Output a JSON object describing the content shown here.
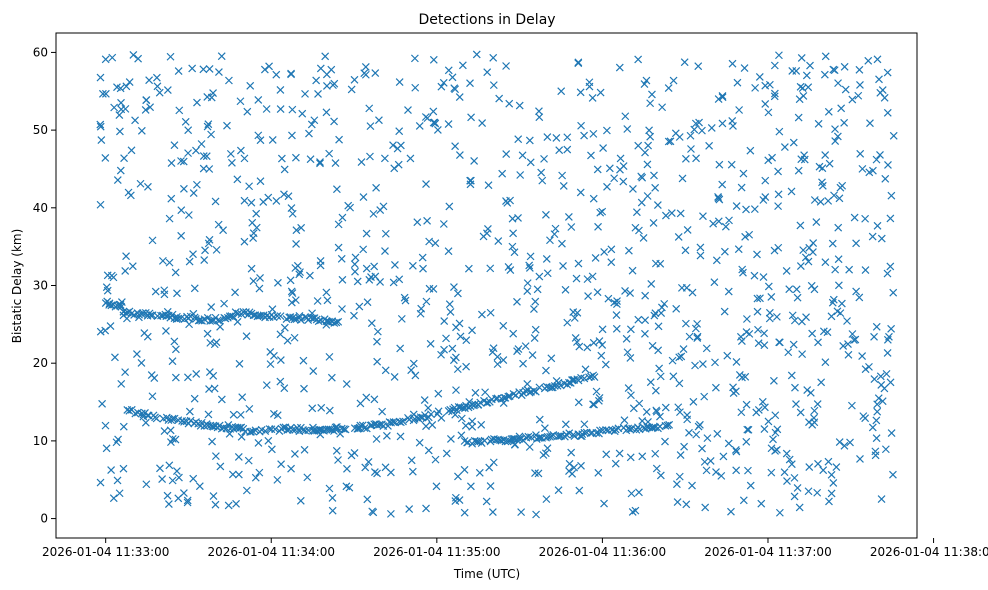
{
  "chart_data": {
    "type": "scatter",
    "title": "Detections in Delay",
    "xlabel": "Time (UTC)",
    "ylabel": "Bistatic Delay (km)",
    "marker": "x",
    "color": "#1f77b4",
    "grid": false,
    "legend": false,
    "xlim": [
      "2026-01-04 11:32:42",
      "2026-01-04 11:37:54"
    ],
    "ylim": [
      -2.5,
      62.5
    ],
    "x_ticks": [
      "2026-01-04 11:33:00",
      "2026-01-04 11:34:00",
      "2026-01-04 11:35:00",
      "2026-01-04 11:36:00",
      "2026-01-04 11:37:00",
      "2026-01-04 11:38:00"
    ],
    "y_ticks": [
      0,
      10,
      20,
      30,
      40,
      50,
      60
    ],
    "tracks": [
      {
        "description": "upper target track",
        "points": [
          [
            "2026-01-04 11:33:00",
            27.8
          ],
          [
            "2026-01-04 11:33:05",
            27.2
          ],
          [
            "2026-01-04 11:33:08",
            26.5
          ],
          [
            "2026-01-04 11:33:20",
            26.2
          ],
          [
            "2026-01-04 11:33:30",
            25.8
          ],
          [
            "2026-01-04 11:33:40",
            25.6
          ],
          [
            "2026-01-04 11:33:50",
            26.5
          ],
          [
            "2026-01-04 11:34:00",
            26.0
          ],
          [
            "2026-01-04 11:34:10",
            25.8
          ],
          [
            "2026-01-04 11:34:20",
            25.5
          ],
          [
            "2026-01-04 11:34:25",
            25.2
          ]
        ]
      },
      {
        "description": "lower target track",
        "points": [
          [
            "2026-01-04 11:33:08",
            14.0
          ],
          [
            "2026-01-04 11:33:20",
            13.0
          ],
          [
            "2026-01-04 11:33:30",
            12.4
          ],
          [
            "2026-01-04 11:33:40",
            11.8
          ],
          [
            "2026-01-04 11:33:55",
            11.3
          ],
          [
            "2026-01-04 11:34:05",
            11.5
          ],
          [
            "2026-01-04 11:34:20",
            11.4
          ],
          [
            "2026-01-04 11:34:40",
            12.0
          ],
          [
            "2026-01-04 11:34:55",
            13.0
          ],
          [
            "2026-01-04 11:35:05",
            14.0
          ],
          [
            "2026-01-04 11:35:20",
            15.2
          ],
          [
            "2026-01-04 11:35:35",
            16.5
          ],
          [
            "2026-01-04 11:35:50",
            17.7
          ],
          [
            "2026-01-04 11:35:58",
            18.4
          ]
        ]
      },
      {
        "description": "secondary track",
        "points": [
          [
            "2026-01-04 11:35:10",
            9.9
          ],
          [
            "2026-01-04 11:35:20",
            10.0
          ],
          [
            "2026-01-04 11:35:50",
            10.8
          ],
          [
            "2026-01-04 11:36:00",
            11.2
          ],
          [
            "2026-01-04 11:36:10",
            11.6
          ],
          [
            "2026-01-04 11:36:25",
            12.0
          ]
        ]
      }
    ],
    "clutter": {
      "count": 1200,
      "x_range": [
        "2026-01-04 11:32:58",
        "2026-01-04 11:37:46"
      ],
      "y_range": [
        0.5,
        59.8
      ]
    }
  }
}
